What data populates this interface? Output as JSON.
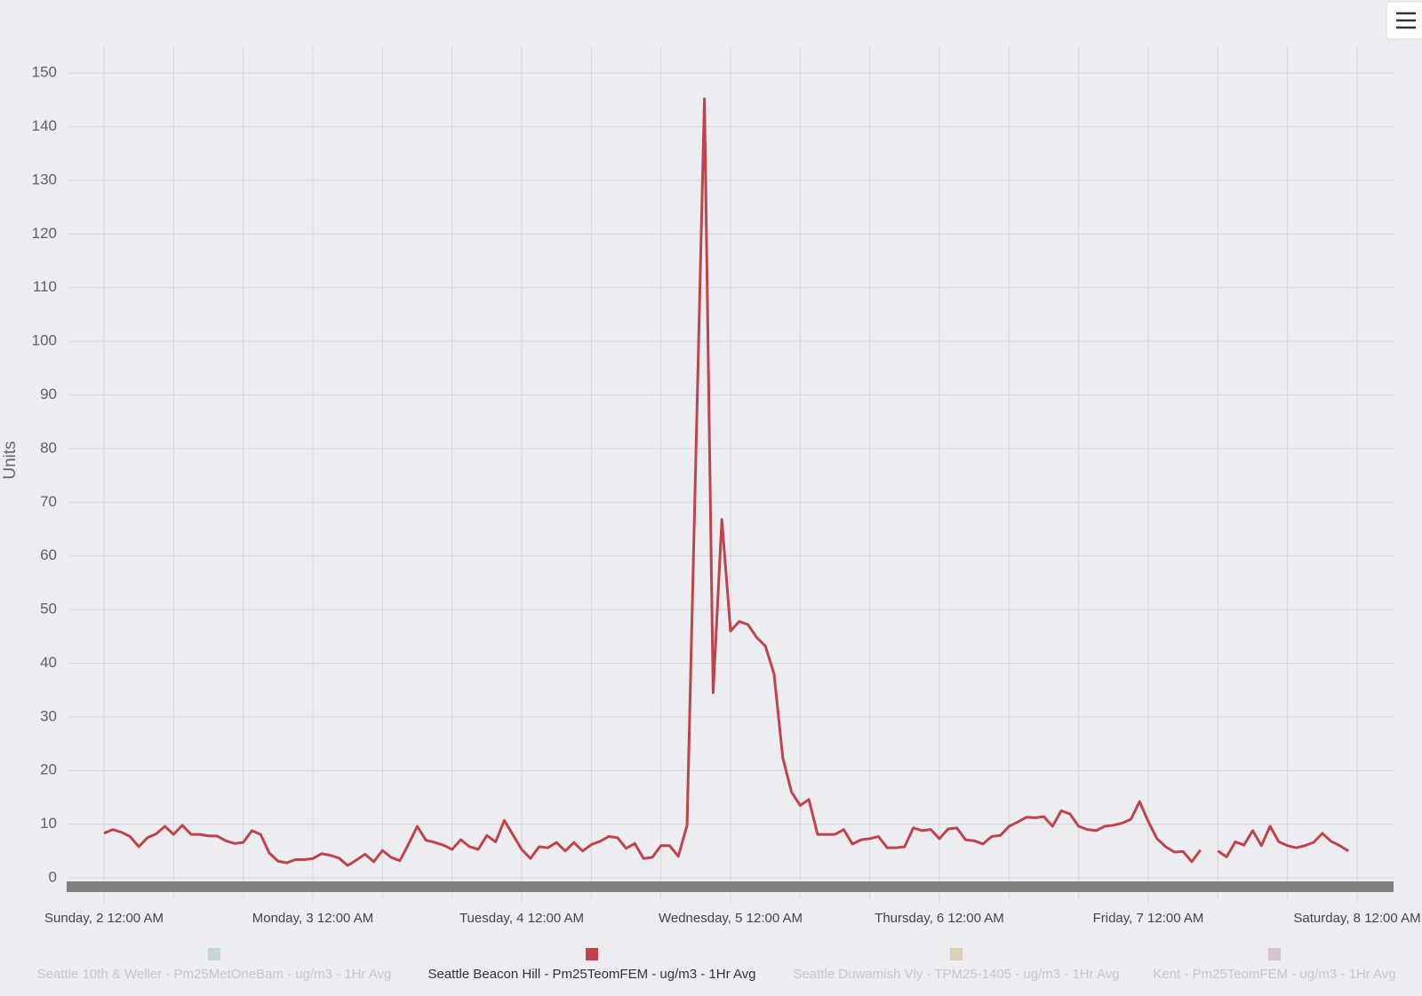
{
  "chart_data": {
    "type": "line",
    "y_axis_title": "Units",
    "ylim": [
      0,
      155
    ],
    "yticks": [
      0,
      10,
      20,
      30,
      40,
      50,
      60,
      70,
      80,
      90,
      100,
      110,
      120,
      130,
      140,
      150
    ],
    "grid": true,
    "legend": "bottom",
    "categories": [
      "Sunday, 2 12:00 AM",
      null,
      null,
      null,
      null,
      null,
      null,
      null,
      null,
      null,
      null,
      null,
      null,
      null,
      null,
      null,
      null,
      null,
      null,
      null,
      null,
      null,
      null,
      null,
      "Monday, 3 12:00 AM",
      null,
      null,
      null,
      null,
      null,
      null,
      null,
      null,
      null,
      null,
      null,
      null,
      null,
      null,
      null,
      null,
      null,
      null,
      null,
      null,
      null,
      null,
      null,
      "Tuesday, 4 12:00 AM",
      null,
      null,
      null,
      null,
      null,
      null,
      null,
      null,
      null,
      null,
      null,
      null,
      null,
      null,
      null,
      null,
      null,
      null,
      null,
      null,
      null,
      null,
      null,
      "Wednesday, 5 12:00 AM",
      null,
      null,
      null,
      null,
      null,
      null,
      null,
      null,
      null,
      null,
      null,
      null,
      null,
      null,
      null,
      null,
      null,
      null,
      null,
      null,
      null,
      null,
      null,
      "Thursday, 6 12:00 AM",
      null,
      null,
      null,
      null,
      null,
      null,
      null,
      null,
      null,
      null,
      null,
      null,
      null,
      null,
      null,
      null,
      null,
      null,
      null,
      null,
      null,
      null,
      null,
      "Friday, 7 12:00 AM",
      null,
      null,
      null,
      null,
      null,
      null,
      null,
      null,
      null,
      null,
      null,
      null,
      null,
      null,
      null,
      null,
      null,
      null,
      null,
      null,
      null,
      null,
      null,
      "Saturday, 8 12:00 AM"
    ],
    "series": [
      {
        "name": "Seattle 10th & Weller - Pm25MetOneBam - ug/m3 - 1Hr Avg",
        "color": "#c3d6d3",
        "visible": false
      },
      {
        "name": "Seattle Beacon Hill - Pm25TeomFEM - ug/m3 - 1Hr Avg",
        "color": "#c0434c",
        "visible": true,
        "values": [
          8.3,
          9,
          8.5,
          7.7,
          5.8,
          7.5,
          8.2,
          9.6,
          8.1,
          9.8,
          8.1,
          8.1,
          7.8,
          7.8,
          6.9,
          6.4,
          6.6,
          8.8,
          8.1,
          4.6,
          3.1,
          2.8,
          3.4,
          3.4,
          3.6,
          4.5,
          4.2,
          3.7,
          2.3,
          3.3,
          4.4,
          3.0,
          5.1,
          3.8,
          3.2,
          6.3,
          9.6,
          7.0,
          6.6,
          6.1,
          5.3,
          7.1,
          5.8,
          5.3,
          7.9,
          6.7,
          10.7,
          8.0,
          5.3,
          3.6,
          5.8,
          5.6,
          6.6,
          5.0,
          6.6,
          5.0,
          6.2,
          6.8,
          7.7,
          7.5,
          5.5,
          6.4,
          3.6,
          3.8,
          6.0,
          6.0,
          4.0,
          9.8,
          77.5,
          145.2,
          34.5,
          66.8,
          46,
          47.8,
          47.2,
          44.8,
          43.2,
          38,
          22.4,
          16.0,
          13.5,
          14.6,
          8.1,
          8.1,
          8.1,
          9.0,
          6.3,
          7.1,
          7.3,
          7.7,
          5.6,
          5.6,
          5.8,
          9.3,
          8.8,
          9.0,
          7.3,
          9.1,
          9.3,
          7.1,
          6.9,
          6.3,
          7.7,
          7.9,
          9.6,
          10.4,
          11.3,
          11.2,
          11.4,
          9.6,
          12.5,
          11.9,
          9.6,
          9.0,
          8.8,
          9.6,
          9.8,
          10.2,
          10.9,
          14.2,
          10.5,
          7.3,
          5.8,
          4.8,
          4.9,
          3.0,
          5.2,
          null,
          5.0,
          3.9,
          6.7,
          6.1,
          8.8,
          6.0,
          9.6,
          6.7,
          6.0,
          5.6,
          6.0,
          6.6,
          8.3,
          6.8,
          6.0,
          5.0,
          null
        ]
      },
      {
        "name": "Seattle Duwamish Vly - TPM25-1405 - ug/m3 - 1Hr Avg",
        "color": "#dcd0b4",
        "visible": false
      },
      {
        "name": "Kent - Pm25TeomFEM - ug/m3 - 1Hr Avg",
        "color": "#d8c4cf",
        "visible": false
      }
    ]
  }
}
